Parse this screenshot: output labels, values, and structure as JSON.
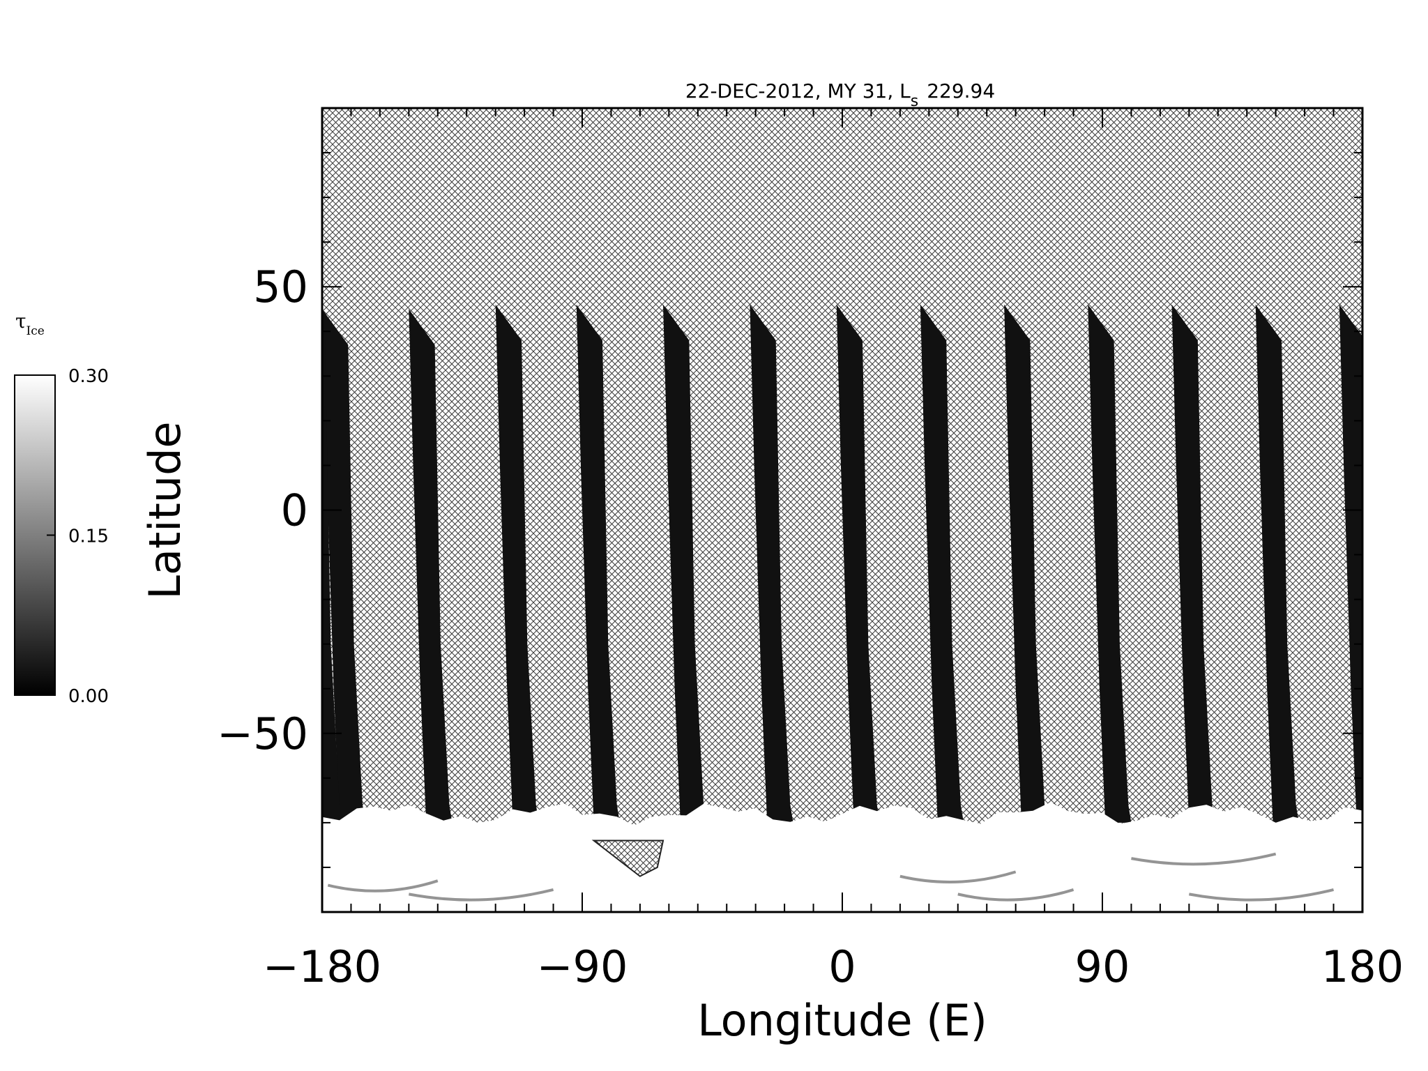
{
  "chart_data": {
    "type": "heatmap",
    "title": "22-DEC-2012, MY 31,  L",
    "title_subscript": "s",
    "title_value": "229.94",
    "xlabel": "Longitude (E)",
    "ylabel": "Latitude",
    "xlim": [
      -180,
      180
    ],
    "ylim": [
      -90,
      90
    ],
    "x_ticks": [
      -180,
      -90,
      0,
      90,
      180
    ],
    "x_tick_labels": [
      "−180",
      "−90",
      "0",
      "90",
      "180"
    ],
    "y_ticks": [
      -50,
      0,
      50
    ],
    "y_tick_labels": [
      "−50",
      "0",
      "50"
    ],
    "grid": false,
    "no_data_pattern": "crosshatch",
    "colorbar": {
      "label": "τ",
      "label_subscript": "Ice",
      "min": 0.0,
      "max": 0.3,
      "ticks": [
        0.0,
        0.15,
        0.3
      ],
      "tick_labels": [
        "0.00",
        "0.15",
        "0.30"
      ],
      "colormap": "grayscale",
      "color_min": "#000000",
      "color_max": "#ffffff"
    },
    "swaths": [
      {
        "top_lon": -180,
        "top_lat": 45
      },
      {
        "top_lon": -150,
        "top_lat": 45
      },
      {
        "top_lon": -120,
        "top_lat": 46
      },
      {
        "top_lon": -92,
        "top_lat": 46
      },
      {
        "top_lon": -62,
        "top_lat": 46
      },
      {
        "top_lon": -32,
        "top_lat": 46
      },
      {
        "top_lon": -2,
        "top_lat": 46
      },
      {
        "top_lon": 27,
        "top_lat": 46
      },
      {
        "top_lon": 56,
        "top_lat": 46
      },
      {
        "top_lon": 85,
        "top_lat": 46
      },
      {
        "top_lon": 114,
        "top_lat": 46
      },
      {
        "top_lon": 143,
        "top_lat": 46
      },
      {
        "top_lon": 172,
        "top_lat": 46
      }
    ],
    "swath_value_typical": 0.02,
    "polar_cap_value": 0.3,
    "polar_cap_lat_edge": -68
  }
}
